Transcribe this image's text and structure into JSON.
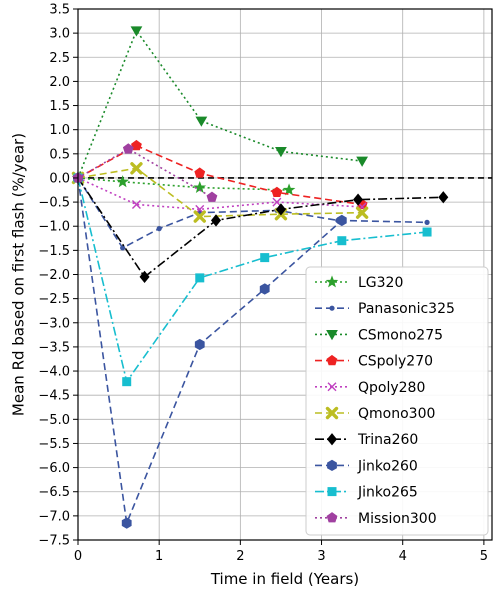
{
  "chart_data": {
    "type": "line",
    "title": "",
    "xlabel": "Time in field (Years)",
    "ylabel": "Mean Rd based on first flash (%/year)",
    "xlim": [
      0,
      5.1
    ],
    "ylim": [
      -7.5,
      3.5
    ],
    "xticks": [
      0,
      1,
      2,
      3,
      4,
      5
    ],
    "xtick_labels": [
      "0",
      "1",
      "2",
      "3",
      "4",
      "5"
    ],
    "yticks": [
      3.5,
      3.0,
      2.5,
      2.0,
      1.5,
      1.0,
      0.5,
      0.0,
      -0.5,
      -1.0,
      -1.5,
      -2.0,
      -2.5,
      -3.0,
      -3.5,
      -4.0,
      -4.5,
      -5.0,
      -5.5,
      -6.0,
      -6.5,
      -7.0,
      -7.5
    ],
    "ytick_labels": [
      "3.5",
      "3.0",
      "2.5",
      "2.0",
      "1.5",
      "1.0",
      "0.5",
      "0.0",
      "−0.5",
      "−1.0",
      "−1.5",
      "−2.0",
      "−2.5",
      "−3.0",
      "−3.5",
      "−4.0",
      "−4.5",
      "−5.0",
      "−5.5",
      "−6.0",
      "−6.5",
      "−7.0",
      "−7.5"
    ],
    "grid": true,
    "zero_line": true,
    "legend_position": "lower-right",
    "series": [
      {
        "name": "LG320",
        "color": "#2ca02c",
        "line": "dotted",
        "marker": "star",
        "points": [
          [
            0,
            0
          ],
          [
            0.55,
            -0.08
          ],
          [
            1.5,
            -0.2
          ],
          [
            2.6,
            -0.25
          ]
        ]
      },
      {
        "name": "Panasonic325",
        "color": "#3b55a0",
        "line": "dashed",
        "marker": "point",
        "points": [
          [
            0,
            0
          ],
          [
            0.55,
            -1.45
          ],
          [
            1.0,
            -1.05
          ],
          [
            1.5,
            -0.72
          ],
          [
            2.45,
            -0.67
          ],
          [
            3.2,
            -0.88
          ],
          [
            4.3,
            -0.92
          ]
        ]
      },
      {
        "name": "CSmono275",
        "color": "#1a8a2a",
        "line": "dotted",
        "marker": "triangle-down",
        "points": [
          [
            0,
            0
          ],
          [
            0.72,
            3.05
          ],
          [
            1.52,
            1.18
          ],
          [
            2.5,
            0.55
          ],
          [
            3.5,
            0.35
          ]
        ]
      },
      {
        "name": "CSpoly270",
        "color": "#ee2222",
        "line": "dashed",
        "marker": "pentagon",
        "points": [
          [
            0,
            0
          ],
          [
            0.72,
            0.67
          ],
          [
            1.5,
            0.1
          ],
          [
            2.45,
            -0.3
          ],
          [
            3.5,
            -0.55
          ]
        ]
      },
      {
        "name": "Qpoly280",
        "color": "#c040c0",
        "line": "dotted",
        "marker": "x",
        "points": [
          [
            0,
            0
          ],
          [
            0.72,
            -0.55
          ],
          [
            1.5,
            -0.65
          ],
          [
            2.45,
            -0.5
          ],
          [
            3.5,
            -0.6
          ]
        ]
      },
      {
        "name": "Qmono300",
        "color": "#bcbd22",
        "line": "dashed",
        "marker": "X",
        "points": [
          [
            0,
            0
          ],
          [
            0.72,
            0.2
          ],
          [
            1.5,
            -0.8
          ],
          [
            2.5,
            -0.75
          ],
          [
            3.5,
            -0.72
          ]
        ]
      },
      {
        "name": "Trina260",
        "color": "#000000",
        "line": "dashdot",
        "marker": "diamond",
        "points": [
          [
            0,
            0
          ],
          [
            0.82,
            -2.05
          ],
          [
            1.7,
            -0.88
          ],
          [
            2.5,
            -0.65
          ],
          [
            3.45,
            -0.45
          ],
          [
            4.5,
            -0.4
          ]
        ]
      },
      {
        "name": "Jinko260",
        "color": "#3b55a0",
        "line": "dashed",
        "marker": "hexagon",
        "points": [
          [
            0,
            0
          ],
          [
            0.6,
            -7.15
          ],
          [
            1.5,
            -3.45
          ],
          [
            2.3,
            -2.3
          ],
          [
            3.25,
            -0.88
          ]
        ]
      },
      {
        "name": "Jinko265",
        "color": "#17becf",
        "line": "dashdot",
        "marker": "square",
        "points": [
          [
            0,
            0
          ],
          [
            0.6,
            -4.22
          ],
          [
            1.5,
            -2.07
          ],
          [
            2.3,
            -1.65
          ],
          [
            3.25,
            -1.3
          ],
          [
            4.3,
            -1.12
          ]
        ]
      },
      {
        "name": "Mission300",
        "color": "#a040a0",
        "line": "dotted",
        "marker": "pentagon",
        "points": [
          [
            0,
            0
          ],
          [
            0.62,
            0.6
          ],
          [
            1.65,
            -0.4
          ]
        ]
      }
    ]
  }
}
